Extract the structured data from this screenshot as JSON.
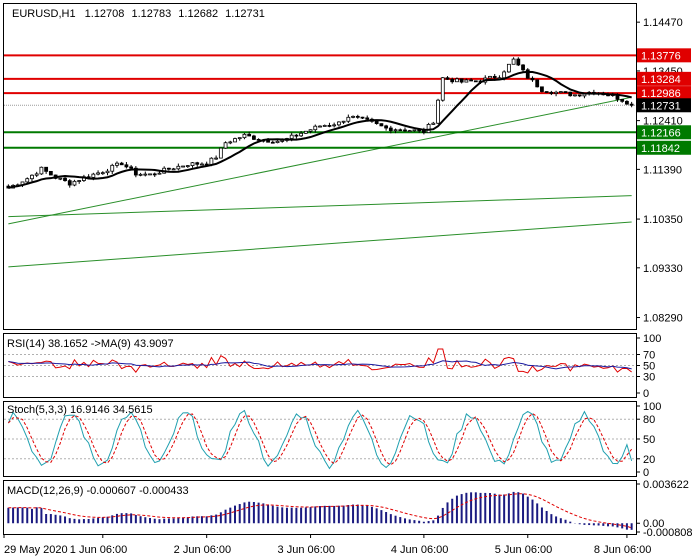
{
  "header": {
    "symbol": "EURUSD,H1",
    "open": "1.12708",
    "high": "1.12783",
    "low": "1.12682",
    "close": "1.12731"
  },
  "colors": {
    "bull": "#000000",
    "bear": "#000000",
    "ma": "#000000",
    "resistance": "#e00000",
    "support": "#007a00",
    "trend": "#2a8f2a",
    "rsi": "#e00000",
    "rsi_ma": "#1a1aa0",
    "stoch_main": "#20a0b0",
    "stoch_signal": "#e00000",
    "macd_hist": "#1a1a80",
    "macd_signal": "#e00000",
    "price_tag": "#000000"
  },
  "chart_data": [
    {
      "type": "candlestick",
      "name": "main",
      "ylim": [
        1.0805,
        1.1485
      ],
      "price_ticks": [
        "1.14470",
        "1.13450",
        "1.12410",
        "1.11390",
        "1.10350",
        "1.09330",
        "1.08290"
      ],
      "x_labels": [
        "29 May 2020",
        "1 Jun 06:00",
        "2 Jun 06:00",
        "3 Jun 06:00",
        "4 Jun 06:00",
        "5 Jun 06:00",
        "8 Jun 06:00"
      ],
      "resistance_levels": [
        {
          "value": 1.13776,
          "label": "1.13776"
        },
        {
          "value": 1.13284,
          "label": "1.13284"
        },
        {
          "value": 1.12986,
          "label": "1.12986"
        }
      ],
      "current_price": {
        "value": 1.12731,
        "label": "1.12731"
      },
      "support_levels": [
        {
          "value": 1.12166,
          "label": "1.12166"
        },
        {
          "value": 1.11842,
          "label": "1.11842"
        }
      ],
      "trend_lines": [
        {
          "from": {
            "bar": 0,
            "price": 1.1025
          },
          "to": {
            "bar": 132,
            "price": 1.129
          }
        },
        {
          "from": {
            "bar": 0,
            "price": 1.104
          },
          "to": {
            "bar": 132,
            "price": 1.1084
          }
        },
        {
          "from": {
            "bar": 0,
            "price": 1.0935
          },
          "to": {
            "bar": 132,
            "price": 1.1029
          }
        }
      ],
      "price_anchors": [
        [
          0,
          1.11
        ],
        [
          4,
          1.112
        ],
        [
          7,
          1.114
        ],
        [
          10,
          1.1122
        ],
        [
          13,
          1.111
        ],
        [
          16,
          1.1122
        ],
        [
          20,
          1.1135
        ],
        [
          24,
          1.1152
        ],
        [
          27,
          1.113
        ],
        [
          30,
          1.1128
        ],
        [
          34,
          1.114
        ],
        [
          38,
          1.115
        ],
        [
          42,
          1.1152
        ],
        [
          44,
          1.1165
        ],
        [
          46,
          1.1195
        ],
        [
          50,
          1.121
        ],
        [
          54,
          1.12
        ],
        [
          58,
          1.1198
        ],
        [
          62,
          1.1215
        ],
        [
          66,
          1.123
        ],
        [
          70,
          1.1236
        ],
        [
          72,
          1.125
        ],
        [
          76,
          1.124
        ],
        [
          80,
          1.1225
        ],
        [
          84,
          1.1222
        ],
        [
          88,
          1.1218
        ],
        [
          90,
          1.124
        ],
        [
          92,
          1.133
        ],
        [
          96,
          1.1322
        ],
        [
          100,
          1.1325
        ],
        [
          104,
          1.1335
        ],
        [
          107,
          1.1368
        ],
        [
          110,
          1.1332
        ],
        [
          113,
          1.1306
        ],
        [
          116,
          1.13
        ],
        [
          120,
          1.1295
        ],
        [
          124,
          1.1302
        ],
        [
          128,
          1.1293
        ],
        [
          131,
          1.128
        ],
        [
          132,
          1.12731
        ]
      ]
    },
    {
      "type": "line",
      "name": "rsi",
      "label": "RSI(14) 38.1652  ->MA(9) 43.9097",
      "ylim": [
        0,
        100
      ],
      "levels": [
        30,
        50,
        70
      ],
      "ticks": [
        "100",
        "70",
        "50",
        "30",
        "0"
      ]
    },
    {
      "type": "line",
      "name": "stochastic",
      "label": "Stoch(5,3,3) 16.9146 34.5615",
      "ylim": [
        0,
        100
      ],
      "levels": [
        20,
        50,
        80
      ],
      "ticks": [
        "100",
        "80",
        "50",
        "20",
        "0"
      ]
    },
    {
      "type": "bar",
      "name": "macd",
      "label": "MACD(12,26,9) -0.000607 -0.000433",
      "ylim": [
        -0.000808,
        0.003622
      ],
      "ticks": [
        "0.003622",
        "0.00",
        "-0.000808"
      ]
    }
  ]
}
